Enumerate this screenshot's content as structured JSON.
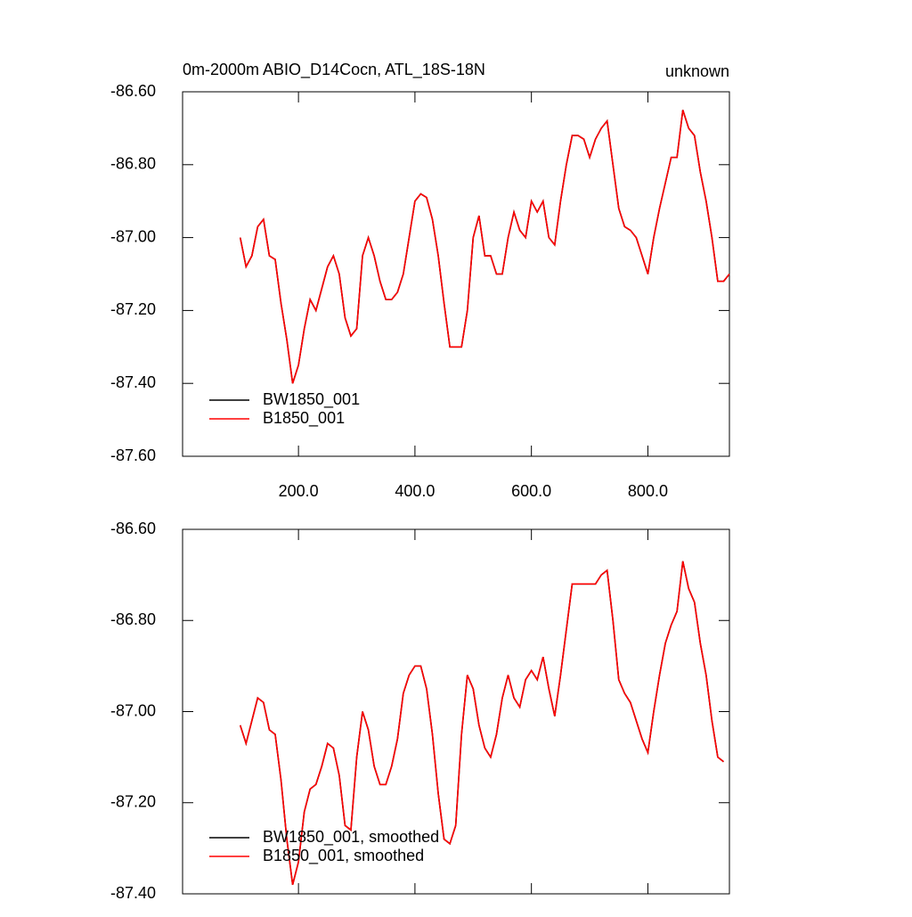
{
  "chart_data": [
    {
      "type": "line",
      "title": "0m-2000m ABIO_D14Cocn, ATL_18S-18N",
      "subtitle": "unknown",
      "xlim": [
        1,
        940
      ],
      "xticks": [
        {
          "value": 200,
          "label": "200.0"
        },
        {
          "value": 400,
          "label": "400.0"
        },
        {
          "value": 600,
          "label": "600.0"
        },
        {
          "value": 800,
          "label": "800.0"
        }
      ],
      "ylim": [
        -87.6,
        -86.6
      ],
      "yticks": [
        {
          "value": -86.6,
          "label": "-86.60"
        },
        {
          "value": -86.8,
          "label": "-86.80"
        },
        {
          "value": -87.0,
          "label": "-87.00"
        },
        {
          "value": -87.2,
          "label": "-87.20"
        },
        {
          "value": -87.4,
          "label": "-87.40"
        },
        {
          "value": -87.6,
          "label": "-87.60"
        }
      ],
      "legend": "lower left",
      "x": [
        100,
        110,
        120,
        130,
        140,
        150,
        160,
        170,
        180,
        190,
        200,
        210,
        220,
        230,
        240,
        250,
        260,
        270,
        280,
        290,
        300,
        310,
        320,
        330,
        340,
        350,
        360,
        370,
        380,
        390,
        400,
        410,
        420,
        430,
        440,
        450,
        460,
        470,
        480,
        490,
        500,
        510,
        520,
        530,
        540,
        550,
        560,
        570,
        580,
        590,
        600,
        610,
        620,
        630,
        640,
        650,
        660,
        670,
        680,
        690,
        700,
        710,
        720,
        730,
        740,
        750,
        760,
        770,
        780,
        790,
        800,
        810,
        820,
        830,
        840,
        850,
        860,
        870,
        880,
        890,
        900,
        910,
        920,
        930,
        940
      ],
      "series": [
        {
          "name": "BW1850_001",
          "color": "#000000",
          "values": [
            -87.0,
            -87.08,
            -87.05,
            -86.97,
            -86.95,
            -87.05,
            -87.06,
            -87.18,
            -87.28,
            -87.4,
            -87.35,
            -87.25,
            -87.17,
            -87.2,
            -87.14,
            -87.08,
            -87.05,
            -87.1,
            -87.22,
            -87.27,
            -87.25,
            -87.05,
            -87.0,
            -87.05,
            -87.12,
            -87.17,
            -87.17,
            -87.15,
            -87.1,
            -87.0,
            -86.9,
            -86.88,
            -86.89,
            -86.95,
            -87.05,
            -87.18,
            -87.3,
            -87.3,
            -87.3,
            -87.2,
            -87.0,
            -86.94,
            -87.05,
            -87.05,
            -87.1,
            -87.1,
            -87.0,
            -86.93,
            -86.98,
            -87.0,
            -86.9,
            -86.93,
            -86.9,
            -87.0,
            -87.02,
            -86.9,
            -86.8,
            -86.72,
            -86.72,
            -86.73,
            -86.78,
            -86.73,
            -86.7,
            -86.68,
            -86.8,
            -86.92,
            -86.97,
            -86.98,
            -87.0,
            -87.05,
            -87.1,
            -87.0,
            -86.92,
            -86.85,
            -86.78,
            -86.78,
            -86.65,
            -86.7,
            -86.72,
            -86.82,
            -86.9,
            -87.0,
            -87.12,
            -87.12,
            -87.1
          ]
        },
        {
          "name": "B1850_001",
          "color": "#ff0000",
          "values": [
            -87.0,
            -87.08,
            -87.05,
            -86.97,
            -86.95,
            -87.05,
            -87.06,
            -87.18,
            -87.28,
            -87.4,
            -87.35,
            -87.25,
            -87.17,
            -87.2,
            -87.14,
            -87.08,
            -87.05,
            -87.1,
            -87.22,
            -87.27,
            -87.25,
            -87.05,
            -87.0,
            -87.05,
            -87.12,
            -87.17,
            -87.17,
            -87.15,
            -87.1,
            -87.0,
            -86.9,
            -86.88,
            -86.89,
            -86.95,
            -87.05,
            -87.18,
            -87.3,
            -87.3,
            -87.3,
            -87.2,
            -87.0,
            -86.94,
            -87.05,
            -87.05,
            -87.1,
            -87.1,
            -87.0,
            -86.93,
            -86.98,
            -87.0,
            -86.9,
            -86.93,
            -86.9,
            -87.0,
            -87.02,
            -86.9,
            -86.8,
            -86.72,
            -86.72,
            -86.73,
            -86.78,
            -86.73,
            -86.7,
            -86.68,
            -86.8,
            -86.92,
            -86.97,
            -86.98,
            -87.0,
            -87.05,
            -87.1,
            -87.0,
            -86.92,
            -86.85,
            -86.78,
            -86.78,
            -86.65,
            -86.7,
            -86.72,
            -86.82,
            -86.9,
            -87.0,
            -87.12,
            -87.12,
            -87.1
          ]
        }
      ]
    },
    {
      "type": "line",
      "xlim": [
        1,
        940
      ],
      "xticks": [
        200,
        400,
        600,
        800
      ],
      "ylim": [
        -87.4,
        -86.6
      ],
      "yticks": [
        {
          "value": -86.6,
          "label": "-86.60"
        },
        {
          "value": -86.8,
          "label": "-86.80"
        },
        {
          "value": -87.0,
          "label": "-87.00"
        },
        {
          "value": -87.2,
          "label": "-87.20"
        },
        {
          "value": -87.4,
          "label": "-87.40"
        }
      ],
      "legend": "lower left",
      "x": [
        100,
        110,
        120,
        130,
        140,
        150,
        160,
        170,
        180,
        190,
        200,
        210,
        220,
        230,
        240,
        250,
        260,
        270,
        280,
        290,
        300,
        310,
        320,
        330,
        340,
        350,
        360,
        370,
        380,
        390,
        400,
        410,
        420,
        430,
        440,
        450,
        460,
        470,
        480,
        490,
        500,
        510,
        520,
        530,
        540,
        550,
        560,
        570,
        580,
        590,
        600,
        610,
        620,
        630,
        640,
        650,
        660,
        670,
        680,
        690,
        700,
        710,
        720,
        730,
        740,
        750,
        760,
        770,
        780,
        790,
        800,
        810,
        820,
        830,
        840,
        850,
        860,
        870,
        880,
        890,
        900,
        910,
        920,
        930
      ],
      "series": [
        {
          "name": "BW1850_001, smoothed",
          "color": "#000000",
          "values": [
            -87.03,
            -87.07,
            -87.02,
            -86.97,
            -86.98,
            -87.04,
            -87.05,
            -87.15,
            -87.28,
            -87.38,
            -87.33,
            -87.22,
            -87.17,
            -87.16,
            -87.12,
            -87.07,
            -87.08,
            -87.14,
            -87.25,
            -87.26,
            -87.1,
            -87.0,
            -87.04,
            -87.12,
            -87.16,
            -87.16,
            -87.12,
            -87.06,
            -86.96,
            -86.92,
            -86.9,
            -86.9,
            -86.95,
            -87.05,
            -87.18,
            -87.28,
            -87.29,
            -87.25,
            -87.05,
            -86.92,
            -86.95,
            -87.03,
            -87.08,
            -87.1,
            -87.05,
            -86.97,
            -86.92,
            -86.97,
            -86.99,
            -86.93,
            -86.91,
            -86.93,
            -86.88,
            -86.95,
            -87.01,
            -86.92,
            -86.82,
            -86.72,
            -86.72,
            -86.72,
            -86.72,
            -86.72,
            -86.7,
            -86.69,
            -86.8,
            -86.93,
            -86.96,
            -86.98,
            -87.02,
            -87.06,
            -87.09,
            -87.0,
            -86.92,
            -86.85,
            -86.81,
            -86.78,
            -86.67,
            -86.73,
            -86.76,
            -86.85,
            -86.92,
            -87.02,
            -87.1,
            -87.11
          ]
        },
        {
          "name": "B1850_001, smoothed",
          "color": "#ff0000",
          "values": [
            -87.03,
            -87.07,
            -87.02,
            -86.97,
            -86.98,
            -87.04,
            -87.05,
            -87.15,
            -87.28,
            -87.38,
            -87.33,
            -87.22,
            -87.17,
            -87.16,
            -87.12,
            -87.07,
            -87.08,
            -87.14,
            -87.25,
            -87.26,
            -87.1,
            -87.0,
            -87.04,
            -87.12,
            -87.16,
            -87.16,
            -87.12,
            -87.06,
            -86.96,
            -86.92,
            -86.9,
            -86.9,
            -86.95,
            -87.05,
            -87.18,
            -87.28,
            -87.29,
            -87.25,
            -87.05,
            -86.92,
            -86.95,
            -87.03,
            -87.08,
            -87.1,
            -87.05,
            -86.97,
            -86.92,
            -86.97,
            -86.99,
            -86.93,
            -86.91,
            -86.93,
            -86.88,
            -86.95,
            -87.01,
            -86.92,
            -86.82,
            -86.72,
            -86.72,
            -86.72,
            -86.72,
            -86.72,
            -86.7,
            -86.69,
            -86.8,
            -86.93,
            -86.96,
            -86.98,
            -87.02,
            -87.06,
            -87.09,
            -87.0,
            -86.92,
            -86.85,
            -86.81,
            -86.78,
            -86.67,
            -86.73,
            -86.76,
            -86.85,
            -86.92,
            -87.02,
            -87.1,
            -87.11
          ]
        }
      ]
    }
  ]
}
